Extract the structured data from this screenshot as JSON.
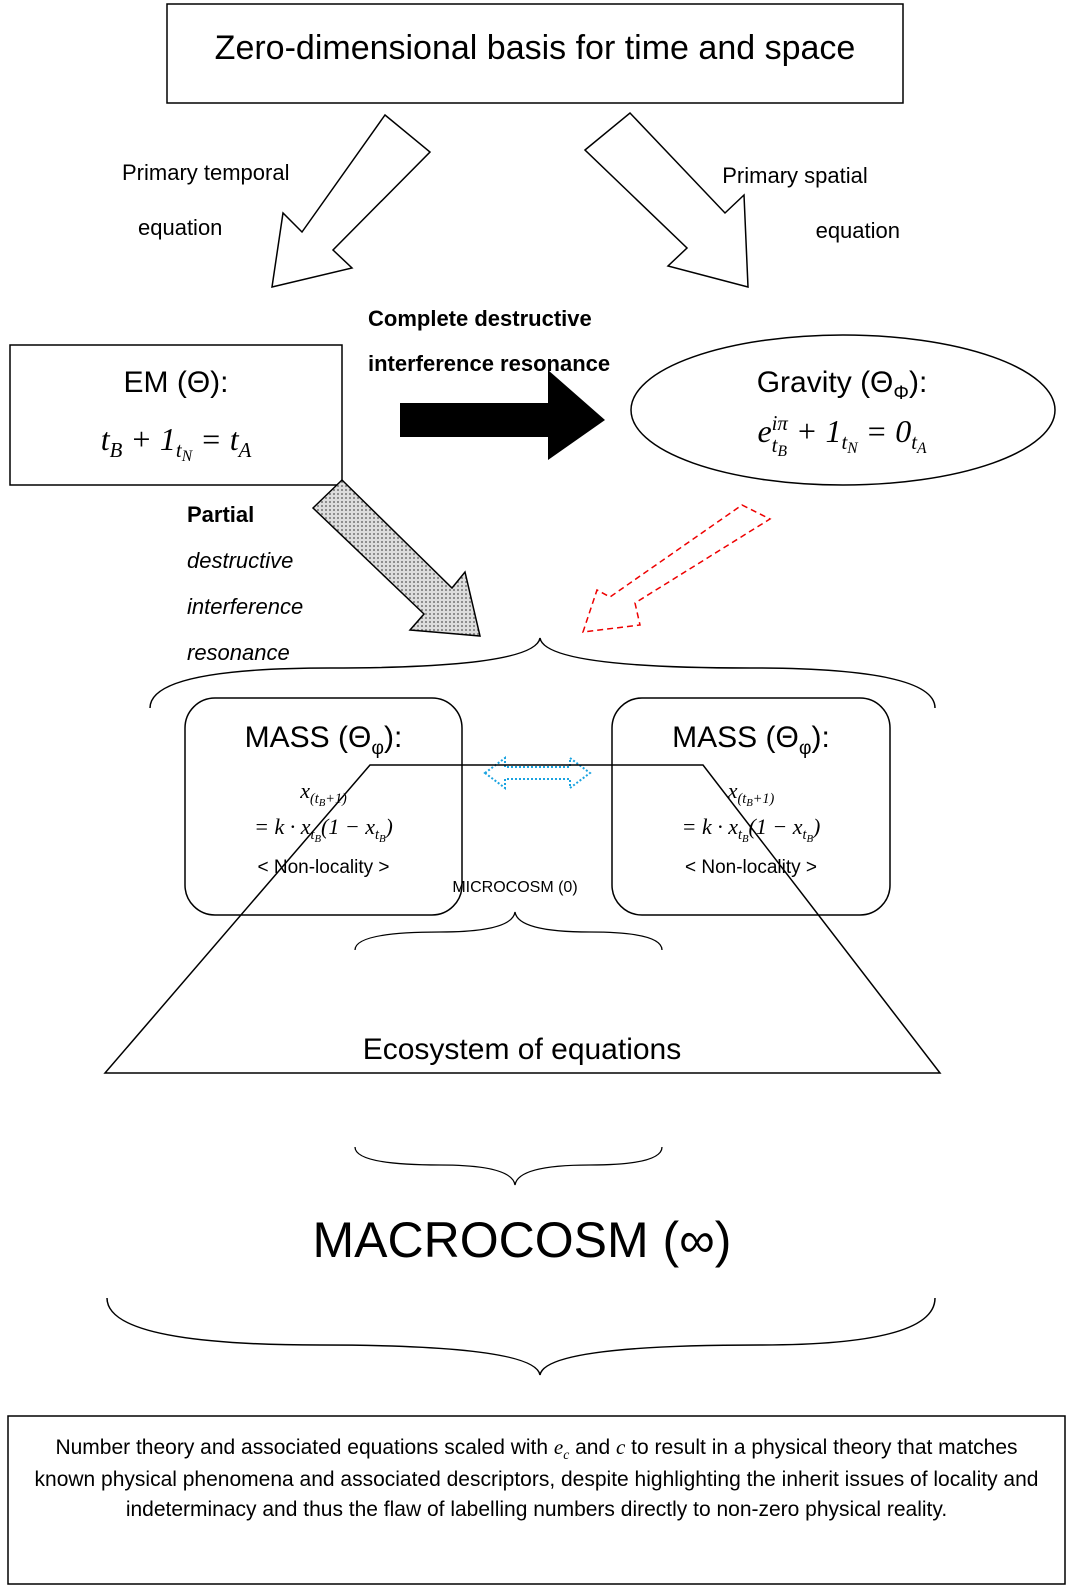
{
  "top_box": "Zero-dimensional basis for time and space",
  "temporal_label": [
    "Primary temporal",
    "equation"
  ],
  "spatial_label": [
    "Primary spatial",
    "equation"
  ],
  "complete_label": [
    "Complete destructive",
    "interference resonance"
  ],
  "partial_label": {
    "bold": "Partial",
    "italic": [
      "destructive",
      "interference",
      "resonance"
    ]
  },
  "em_box": {
    "title": [
      {
        "text": "EM (Θ):"
      }
    ],
    "equation": [
      {
        "text": "t",
        "sub": "B"
      },
      {
        "text": " + 1",
        "sub": "t",
        "sub2": "N"
      },
      {
        "text": " = t",
        "sub": "A"
      }
    ]
  },
  "gravity_box": {
    "title": [
      {
        "text": "Gravity (Θ",
        "sub": "Φ"
      },
      {
        "text": "):"
      }
    ],
    "equation": [
      {
        "text": "e",
        "sup": "iπ",
        "sub": "t",
        "sub2": "B"
      },
      {
        "text": " + 1",
        "sub": "t",
        "sub2": "N"
      },
      {
        "text": " = 0",
        "sub": "t",
        "sub2": "A"
      }
    ]
  },
  "mass_boxes": [
    {
      "title": [
        {
          "text": "MASS (Θ",
          "sub": "φ"
        },
        {
          "text": "):"
        }
      ],
      "line1": [
        {
          "text": "x",
          "sub": "(t",
          "sub2": "B",
          "sub_end": "+1)"
        }
      ],
      "line2": [
        {
          "text": "=  k · x",
          "sub": "t",
          "sub2": "B"
        },
        {
          "text": "(1 −  x",
          "sub": "t",
          "sub2": "B"
        },
        {
          "text": ")"
        }
      ],
      "note": "< Non-locality >"
    },
    {
      "title": [
        {
          "text": "MASS (Θ",
          "sub": "φ"
        },
        {
          "text": "):"
        }
      ],
      "line1": [
        {
          "text": "x",
          "sub": "(t",
          "sub2": "B",
          "sub_end": "+1)"
        }
      ],
      "line2": [
        {
          "text": "=  k · x",
          "sub": "t",
          "sub2": "B"
        },
        {
          "text": "(1 −  x",
          "sub": "t",
          "sub2": "B"
        },
        {
          "text": ")"
        }
      ],
      "note": "< Non-locality >"
    }
  ],
  "microcosm": "MICROCOSM (0)",
  "ecosystem": "Ecosystem of equations",
  "macrocosm": "MACROCOSM (∞)",
  "footer": [
    {
      "text": "Number theory and associated equations scaled with "
    },
    {
      "text": "e",
      "sub": "c",
      "math": true
    },
    {
      "text": " and "
    },
    {
      "text": "c",
      "math": true
    },
    {
      "text": " to result in a physical theory that matches known physical phenomena and associated descriptors, despite highlighting the inherit issues of locality and indeterminacy and thus the flaw  of labelling numbers directly to non-zero physical reality."
    }
  ]
}
